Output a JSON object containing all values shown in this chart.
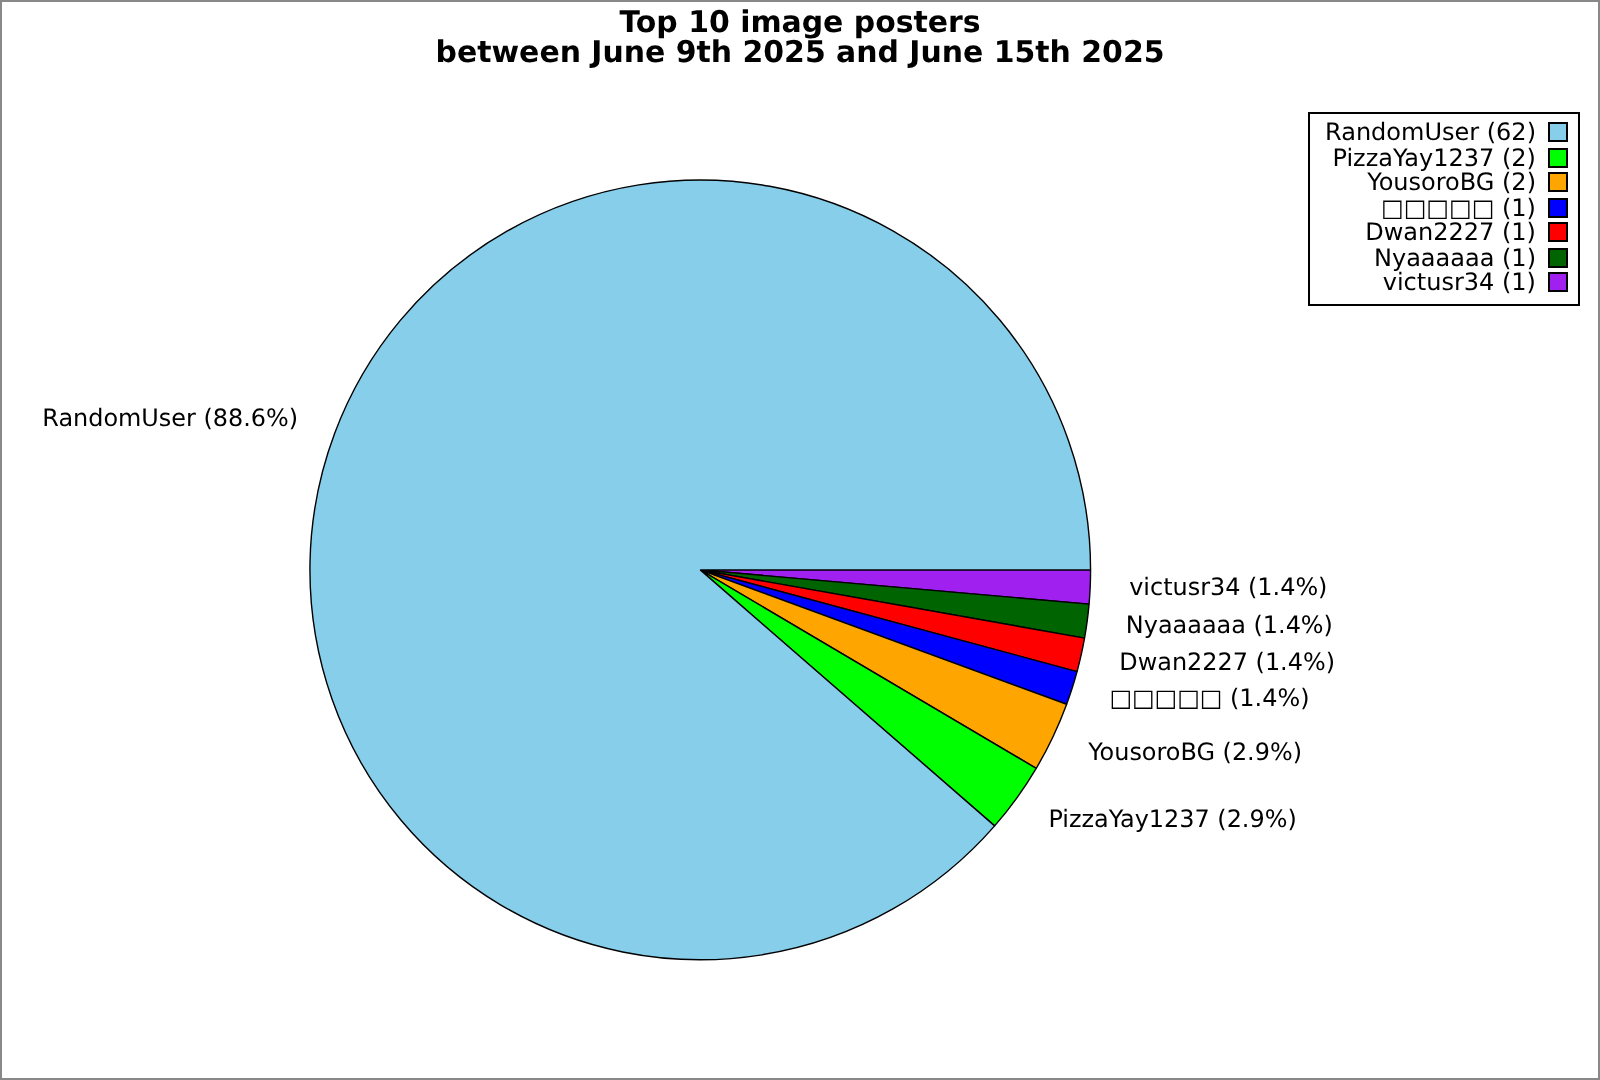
{
  "chart_data": {
    "type": "pie",
    "title": "Top 10 image posters\nbetween June 9th 2025 and June 15th 2025",
    "categories": [
      "RandomUser (62)",
      "PizzaYay1237 (2)",
      "YousoroBG (2)",
      "□□□□□ (1)",
      "Dwan2227 (1)",
      "Nyaaaaaa (1)",
      "victusr34 (1)"
    ],
    "values": [
      88.6,
      2.9,
      2.9,
      1.4,
      1.4,
      1.4,
      1.4
    ],
    "colors": [
      "#87ceeb",
      "#00ff00",
      "#ffa500",
      "#0000ff",
      "#ff0000",
      "#006400",
      "#a020f0"
    ],
    "value_labels": [
      "RandomUser (88.6%)",
      "PizzaYay1237 (2.9%)",
      "YousoroBG (2.9%)",
      "□□□□□ (1.4%)",
      "Dwan2227 (1.4%)",
      "Nyaaaaaa (1.4%)",
      "victusr34 (1.4%)"
    ],
    "legend": "top right"
  }
}
